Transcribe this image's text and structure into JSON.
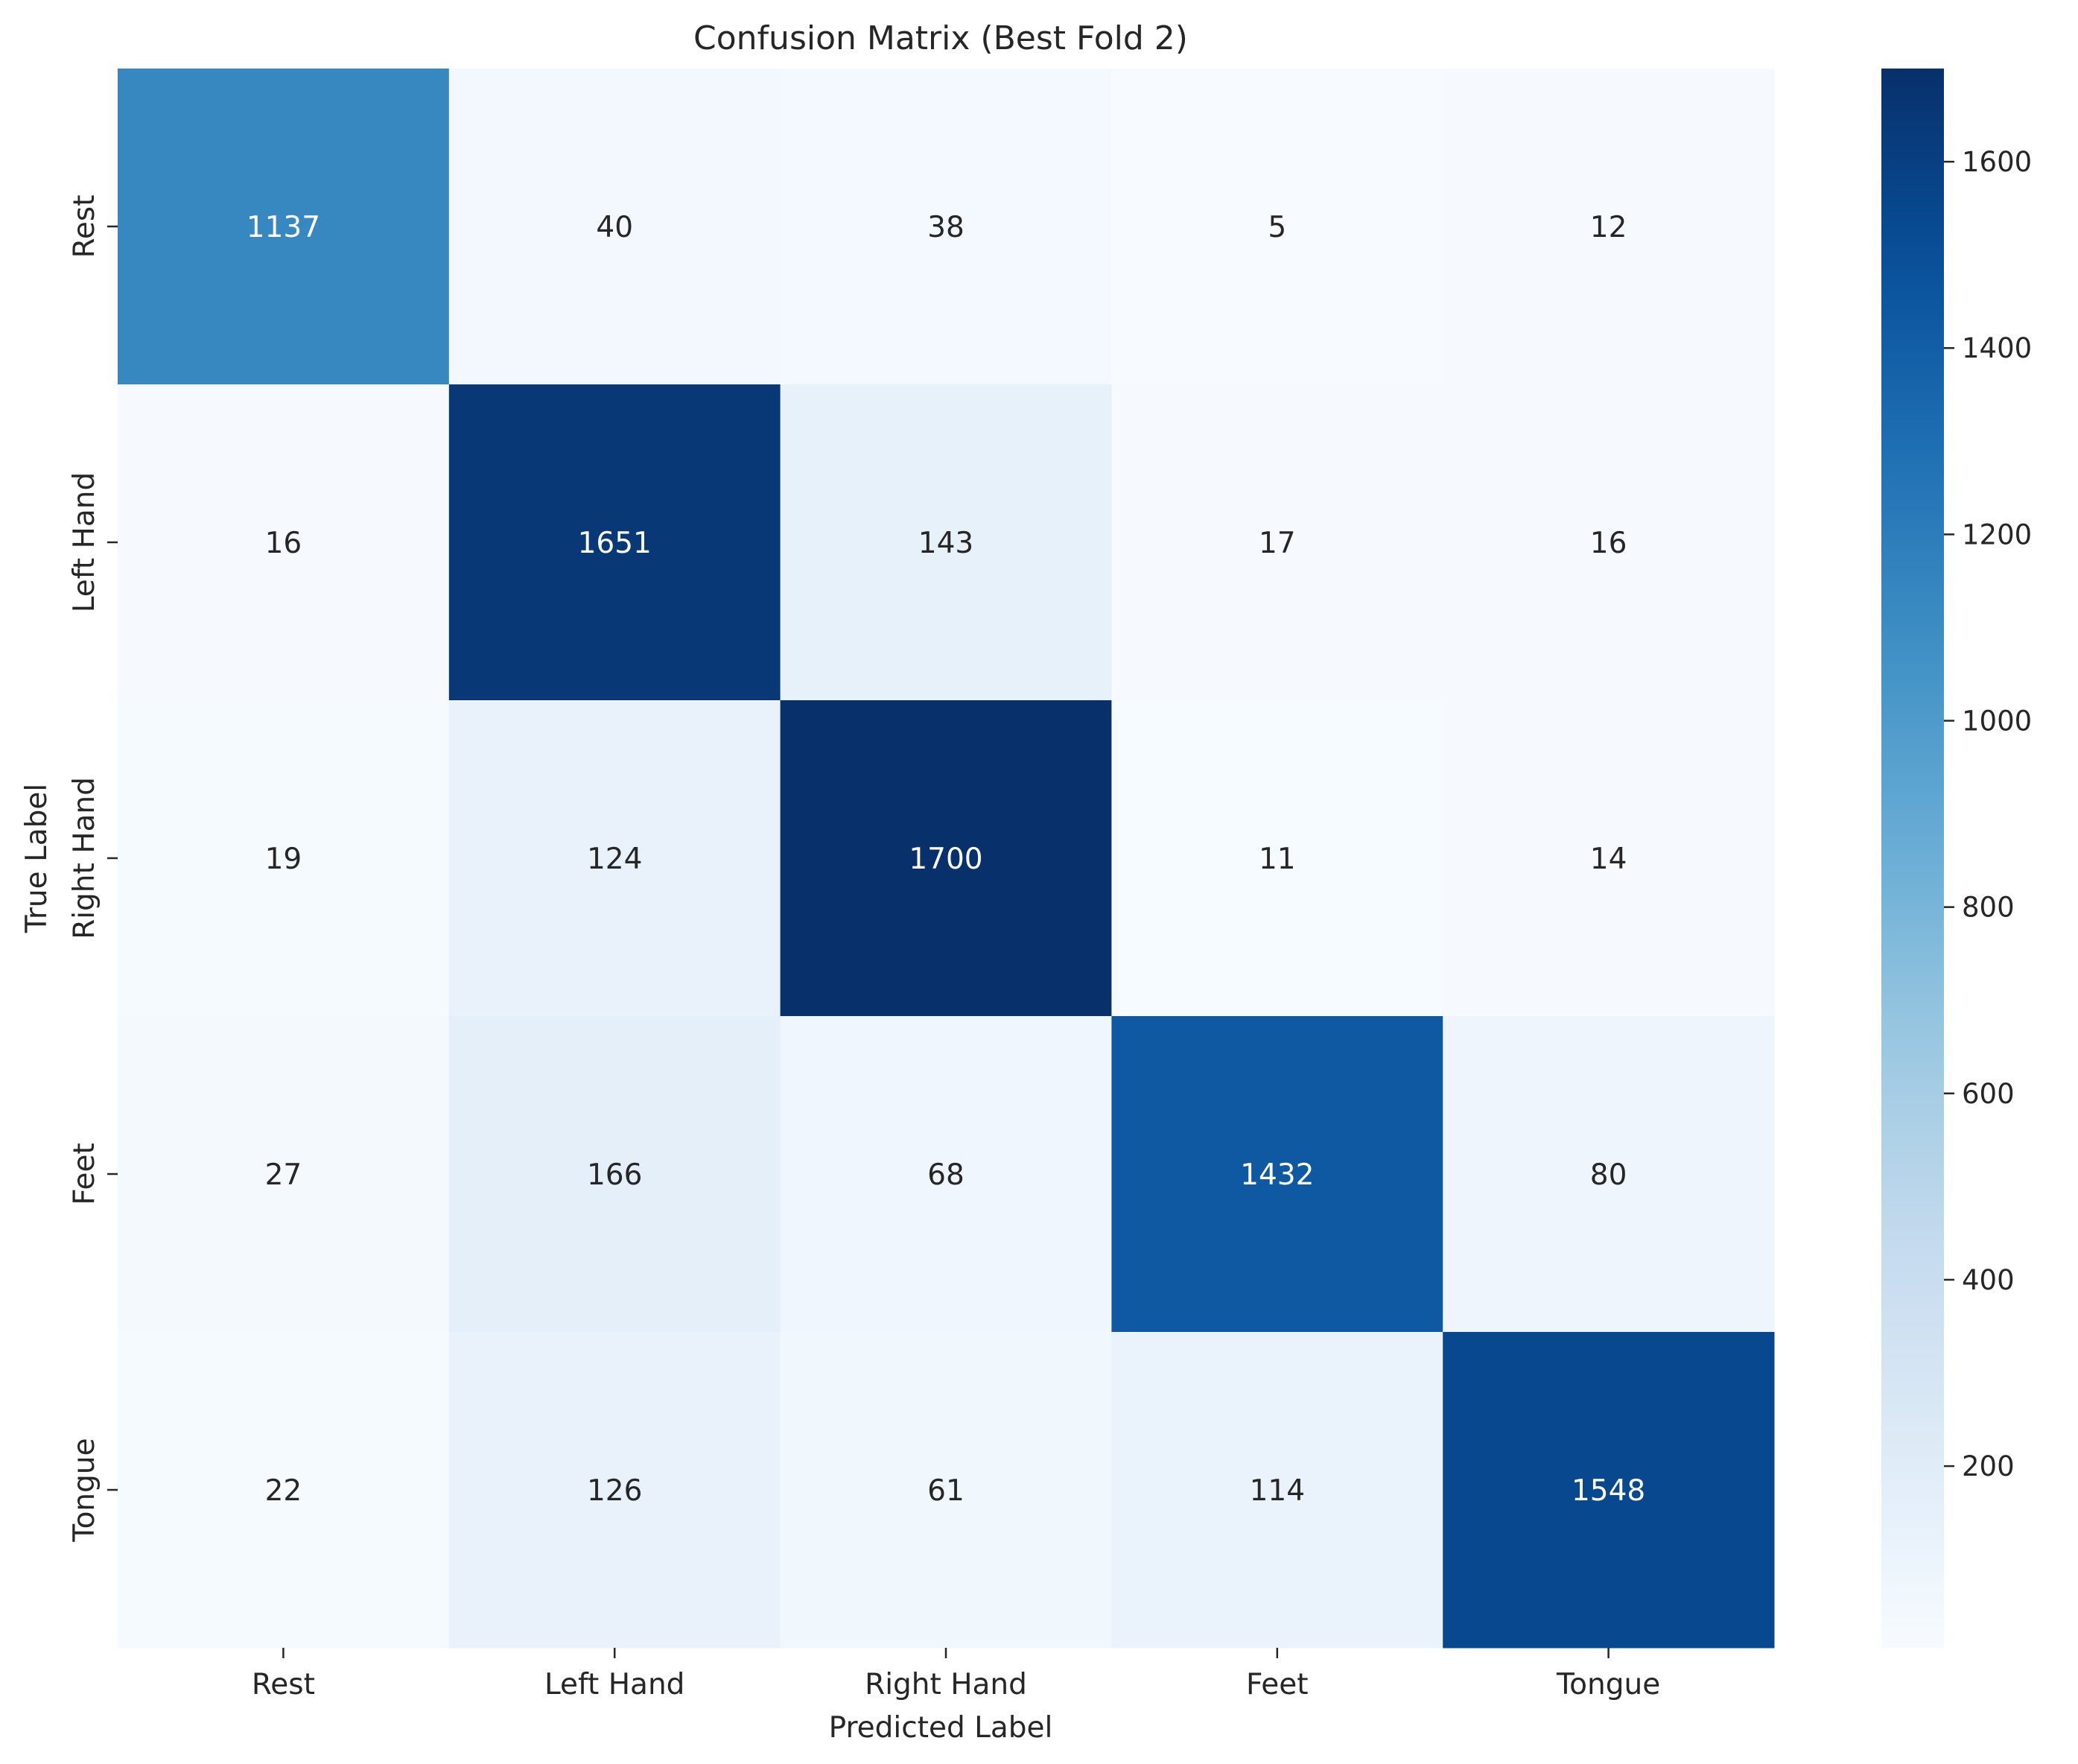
{
  "chart_data": {
    "type": "heatmap",
    "title": "Confusion Matrix (Best Fold 2)",
    "xlabel": "Predicted Label",
    "ylabel": "True Label",
    "x_categories": [
      "Rest",
      "Left Hand",
      "Right Hand",
      "Feet",
      "Tongue"
    ],
    "y_categories": [
      "Rest",
      "Left Hand",
      "Right Hand",
      "Feet",
      "Tongue"
    ],
    "values": [
      [
        1137,
        40,
        38,
        5,
        12
      ],
      [
        16,
        1651,
        143,
        17,
        16
      ],
      [
        19,
        124,
        1700,
        11,
        14
      ],
      [
        27,
        166,
        68,
        1432,
        80
      ],
      [
        22,
        126,
        61,
        114,
        1548
      ]
    ],
    "colormap": "Blues",
    "color_range": [
      5,
      1700
    ],
    "colorbar_ticks": [
      200,
      400,
      600,
      800,
      1000,
      1200,
      1400,
      1600
    ],
    "grid": false,
    "colors": {
      "low": "#f7fbff",
      "high": "#08306b",
      "text_dark": "#262626",
      "text_light": "#ffffff"
    }
  }
}
